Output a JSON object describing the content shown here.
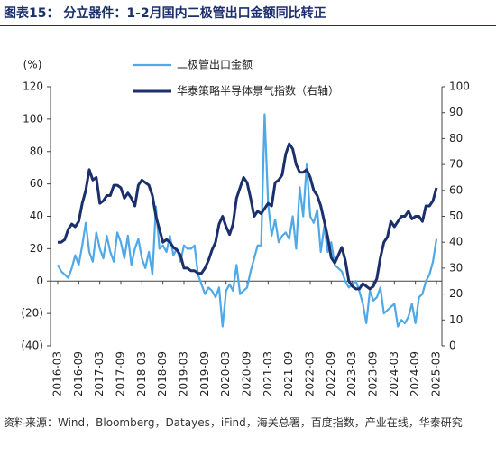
{
  "chart_data": {
    "type": "line",
    "title": "图表15： 分立器件：1-2月国内二极管出口金额同比转正",
    "y_label": "(%)",
    "source": "资料来源：Wind，Bloomberg，Datayes，iFind，海关总署，百度指数，产业在线，华泰研究",
    "categories": [
      "2016-03",
      null,
      null,
      null,
      null,
      null,
      "2016-09",
      null,
      null,
      null,
      null,
      null,
      "2017-03",
      null,
      null,
      null,
      null,
      null,
      "2017-09",
      null,
      null,
      null,
      null,
      null,
      "2018-03",
      null,
      null,
      null,
      null,
      null,
      "2018-09",
      null,
      null,
      null,
      null,
      null,
      "2019-03",
      null,
      null,
      null,
      null,
      null,
      "2019-09",
      null,
      null,
      null,
      null,
      null,
      "2020-03",
      null,
      null,
      null,
      null,
      null,
      "2020-09",
      null,
      null,
      null,
      null,
      null,
      "2021-03",
      null,
      null,
      null,
      null,
      null,
      "2021-09",
      null,
      null,
      null,
      null,
      null,
      "2022-03",
      null,
      null,
      null,
      null,
      null,
      "2022-09",
      null,
      null,
      null,
      null,
      null,
      "2023-03",
      null,
      null,
      null,
      null,
      null,
      "2023-09",
      null,
      null,
      null,
      null,
      null,
      "2024-03",
      null,
      null,
      null,
      null,
      null,
      "2024-09",
      null,
      null,
      null,
      null,
      null,
      "2025-03"
    ],
    "series": [
      {
        "name": "二极管出口金额",
        "color": "#4fa8e8",
        "axis": "y",
        "values": [
          10,
          6,
          4,
          2,
          8,
          16,
          10,
          22,
          36,
          18,
          12,
          30,
          20,
          14,
          28,
          18,
          12,
          30,
          24,
          14,
          28,
          10,
          20,
          26,
          14,
          8,
          18,
          4,
          46,
          20,
          22,
          18,
          28,
          16,
          20,
          12,
          22,
          20,
          20,
          22,
          4,
          -2,
          -8,
          -4,
          -6,
          -10,
          -4,
          -28,
          -6,
          -2,
          -6,
          10,
          -8,
          -6,
          -4,
          6,
          14,
          22,
          22,
          103,
          48,
          28,
          38,
          24,
          28,
          30,
          26,
          40,
          20,
          58,
          40,
          72,
          40,
          36,
          44,
          18,
          34,
          18,
          24,
          10,
          8,
          6,
          0,
          -4,
          -2,
          0,
          -6,
          -14,
          -26,
          -6,
          -12,
          -10,
          -4,
          -20,
          -18,
          -16,
          -14,
          -28,
          -24,
          -26,
          -22,
          -14,
          -26,
          -10,
          -8,
          0,
          4,
          12,
          26
        ]
      },
      {
        "name": "华泰策略半导体景气指数（右轴）",
        "color": "#1b2f6b",
        "axis": "y2",
        "values": [
          40,
          40,
          41,
          45,
          47,
          46,
          48,
          55,
          60,
          68,
          64,
          65,
          55,
          56,
          58,
          58,
          62,
          62,
          61,
          57,
          59,
          57,
          54,
          62,
          64,
          63,
          62,
          58,
          50,
          45,
          40,
          41,
          40,
          38,
          37,
          35,
          30,
          30,
          29,
          29,
          28,
          28,
          30,
          33,
          37,
          40,
          47,
          50,
          46,
          43,
          47,
          57,
          61,
          65,
          63,
          57,
          50,
          52,
          51,
          53,
          55,
          54,
          63,
          64,
          66,
          74,
          78,
          76,
          70,
          67,
          67,
          68,
          65,
          60,
          58,
          54,
          48,
          42,
          34,
          32,
          35,
          38,
          33,
          25,
          23,
          22,
          22,
          24,
          23,
          22,
          23,
          26,
          34,
          40,
          42,
          48,
          46,
          48,
          50,
          50,
          52,
          49,
          50,
          50,
          48,
          54,
          54,
          56,
          61
        ]
      }
    ],
    "ylim": [
      -40,
      120
    ],
    "yticks": [
      {
        "value": -40,
        "label": "(40)"
      },
      {
        "value": -20,
        "label": "(20)"
      },
      0,
      20,
      40,
      60,
      80,
      100,
      120
    ],
    "y2lim": [
      0,
      100
    ],
    "y2ticks": [
      0,
      10,
      20,
      30,
      40,
      50,
      60,
      70,
      80,
      90,
      100
    ],
    "grid": false
  }
}
